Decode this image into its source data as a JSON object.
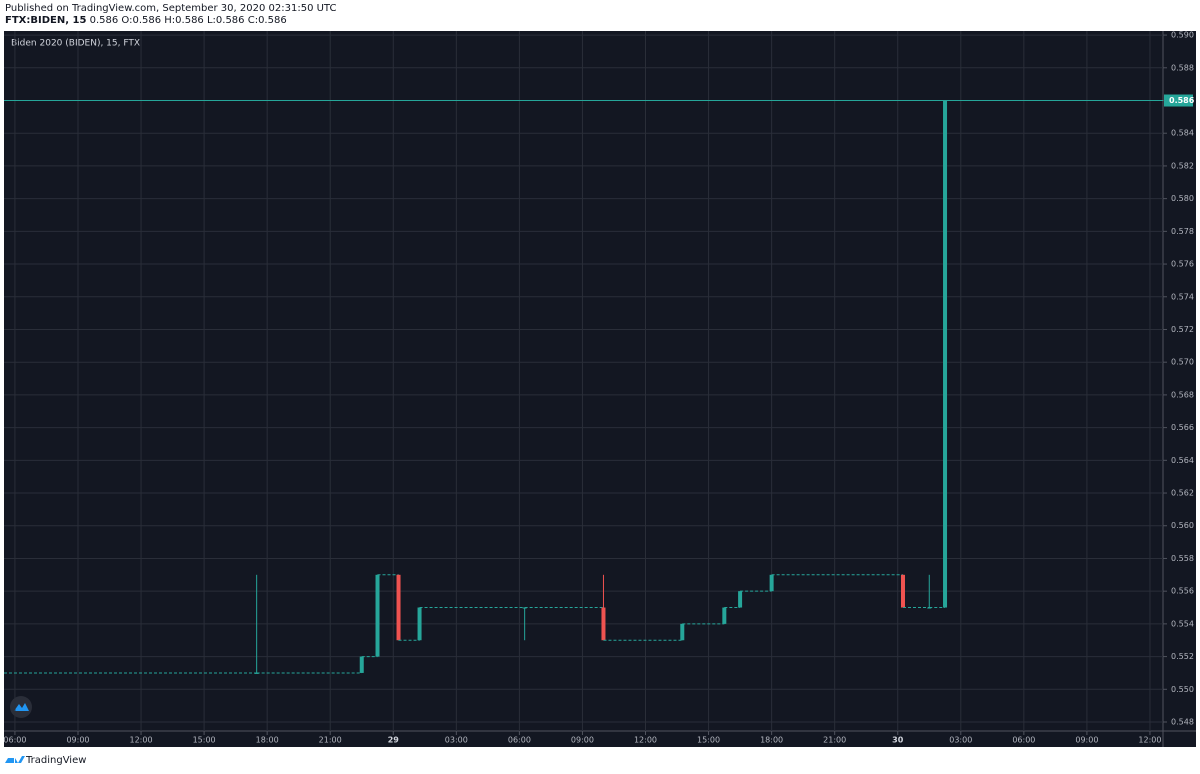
{
  "header": {
    "published": "Published on TradingView.com, September 30, 2020 02:31:50 UTC",
    "symbol": "FTX:BIDEN, 15",
    "ohlc": "0.586 O:0.586 H:0.586 L:0.586 C:0.586"
  },
  "footer": {
    "brand": "TradingView"
  },
  "chart_data": {
    "type": "candlestick",
    "title": "Biden 2020 (BIDEN), 15, FTX",
    "up_color": "#26a69a",
    "down_color": "#ef5350",
    "grid": true,
    "candles": [
      {
        "x": 17.5,
        "open": 0.551,
        "high": 0.557,
        "low": 0.551,
        "close": 0.551
      },
      {
        "x": 22.5,
        "open": 0.551,
        "high": 0.552,
        "low": 0.551,
        "close": 0.552
      },
      {
        "x": 23.25,
        "open": 0.552,
        "high": 0.557,
        "low": 0.552,
        "close": 0.557
      },
      {
        "x": 24.25,
        "open": 0.557,
        "high": 0.557,
        "low": 0.553,
        "close": 0.553
      },
      {
        "x": 25.25,
        "open": 0.553,
        "high": 0.555,
        "low": 0.553,
        "close": 0.555
      },
      {
        "x": 30.25,
        "open": 0.555,
        "high": 0.555,
        "low": 0.553,
        "close": 0.555
      },
      {
        "x": 34.0,
        "open": 0.555,
        "high": 0.557,
        "low": 0.553,
        "close": 0.553
      },
      {
        "x": 37.75,
        "open": 0.553,
        "high": 0.554,
        "low": 0.553,
        "close": 0.554
      },
      {
        "x": 39.75,
        "open": 0.554,
        "high": 0.555,
        "low": 0.554,
        "close": 0.555
      },
      {
        "x": 40.5,
        "open": 0.555,
        "high": 0.556,
        "low": 0.555,
        "close": 0.556
      },
      {
        "x": 42.0,
        "open": 0.556,
        "high": 0.557,
        "low": 0.556,
        "close": 0.557
      },
      {
        "x": 48.25,
        "open": 0.557,
        "high": 0.557,
        "low": 0.555,
        "close": 0.555
      },
      {
        "x": 49.5,
        "open": 0.555,
        "high": 0.557,
        "low": 0.555,
        "close": 0.555
      },
      {
        "x": 50.25,
        "open": 0.555,
        "high": 0.586,
        "low": 0.555,
        "close": 0.586
      }
    ],
    "last_price": 0.586,
    "xlim": [
      5.48,
      60.62
    ],
    "xticks": [
      {
        "value": 6,
        "label": "06:00"
      },
      {
        "value": 9,
        "label": "09:00"
      },
      {
        "value": 12,
        "label": "12:00"
      },
      {
        "value": 15,
        "label": "15:00"
      },
      {
        "value": 18,
        "label": "18:00"
      },
      {
        "value": 21,
        "label": "21:00"
      },
      {
        "value": 24,
        "label": "29"
      },
      {
        "value": 27,
        "label": "03:00"
      },
      {
        "value": 30,
        "label": "06:00"
      },
      {
        "value": 33,
        "label": "09:00"
      },
      {
        "value": 36,
        "label": "12:00"
      },
      {
        "value": 39,
        "label": "15:00"
      },
      {
        "value": 42,
        "label": "18:00"
      },
      {
        "value": 45,
        "label": "21:00"
      },
      {
        "value": 48,
        "label": "30"
      },
      {
        "value": 51,
        "label": "03:00"
      },
      {
        "value": 54,
        "label": "06:00"
      },
      {
        "value": 57,
        "label": "09:00"
      },
      {
        "value": 60,
        "label": "12:00"
      }
    ],
    "ylim": [
      0.54745,
      0.59025
    ],
    "yticks": [
      {
        "value": 0.548,
        "label": "0.548"
      },
      {
        "value": 0.55,
        "label": "0.550"
      },
      {
        "value": 0.552,
        "label": "0.552"
      },
      {
        "value": 0.554,
        "label": "0.554"
      },
      {
        "value": 0.556,
        "label": "0.556"
      },
      {
        "value": 0.558,
        "label": "0.558"
      },
      {
        "value": 0.56,
        "label": "0.560"
      },
      {
        "value": 0.562,
        "label": "0.562"
      },
      {
        "value": 0.564,
        "label": "0.564"
      },
      {
        "value": 0.566,
        "label": "0.566"
      },
      {
        "value": 0.568,
        "label": "0.568"
      },
      {
        "value": 0.57,
        "label": "0.570"
      },
      {
        "value": 0.572,
        "label": "0.572"
      },
      {
        "value": 0.574,
        "label": "0.574"
      },
      {
        "value": 0.576,
        "label": "0.576"
      },
      {
        "value": 0.578,
        "label": "0.578"
      },
      {
        "value": 0.58,
        "label": "0.580"
      },
      {
        "value": 0.582,
        "label": "0.582"
      },
      {
        "value": 0.584,
        "label": "0.584"
      },
      {
        "value": 0.586,
        "label": "0.586"
      },
      {
        "value": 0.588,
        "label": "0.588"
      },
      {
        "value": 0.59,
        "label": "0.590"
      }
    ]
  }
}
